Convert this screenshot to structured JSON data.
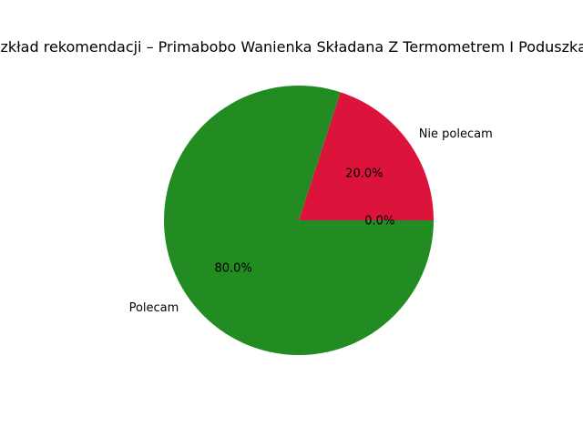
{
  "chart_data": {
    "type": "pie",
    "title": "Rozkład rekomendacji – Primabobo Wanienka Składana Z Termometrem I Poduszką Dla",
    "categories": [
      "Nie polecam",
      "Polecam",
      ""
    ],
    "values": [
      20.0,
      80.0,
      0.0
    ],
    "percent_labels": [
      "20.0%",
      "80.0%",
      "0.0%"
    ],
    "colors": [
      "#dc143c",
      "#228b22",
      "#808080"
    ],
    "start_angle_deg": 0,
    "direction": "counterclockwise",
    "legend": "none",
    "grid": false
  }
}
